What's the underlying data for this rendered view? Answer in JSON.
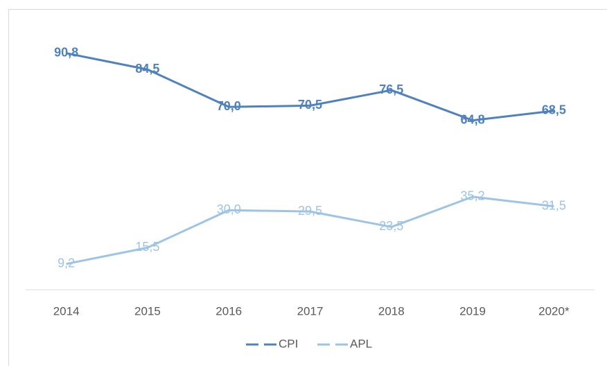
{
  "chart_data": {
    "type": "line",
    "categories": [
      "2014",
      "2015",
      "2016",
      "2017",
      "2018",
      "2019",
      "2020*"
    ],
    "series": [
      {
        "name": "CPI",
        "color": "#4f81bd",
        "values": [
          90.8,
          84.5,
          70.0,
          70.5,
          76.5,
          64.8,
          68.5
        ],
        "value_labels": [
          "90,8",
          "84,5",
          "70,0",
          "70,5",
          "76,5",
          "64,8",
          "68,5"
        ]
      },
      {
        "name": "APL",
        "color": "#9dc3e6",
        "values": [
          9.2,
          15.5,
          30.0,
          29.5,
          23.5,
          35.2,
          31.5
        ],
        "value_labels": [
          "9,2",
          "15,5",
          "30,0",
          "29,5",
          "23,5",
          "35,2",
          "31,5"
        ]
      }
    ],
    "ylim": [
      0,
      100
    ],
    "legend": "bottom"
  }
}
